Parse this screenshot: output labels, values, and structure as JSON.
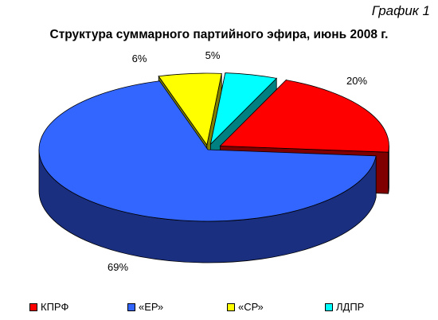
{
  "header": {
    "figure_tag": "График 1",
    "title": "Структура суммарного партийного эфира, июнь 2008 г."
  },
  "chart_data": {
    "type": "pie",
    "style": "3d-exploded",
    "title": "Структура суммарного партийного эфира, июнь 2008 г.",
    "legend_position": "bottom",
    "slices": [
      {
        "name": "КПРФ",
        "value": 20,
        "label": "20%",
        "color": "#ff0000",
        "side_color": "#800000"
      },
      {
        "name": "«ЕР»",
        "value": 69,
        "label": "69%",
        "color": "#3366ff",
        "side_color": "#1a2f80"
      },
      {
        "name": "«СР»",
        "value": 6,
        "label": "6%",
        "color": "#ffff00",
        "side_color": "#808000"
      },
      {
        "name": "ЛДПР",
        "value": 5,
        "label": "5%",
        "color": "#00ffff",
        "side_color": "#008080"
      }
    ]
  }
}
